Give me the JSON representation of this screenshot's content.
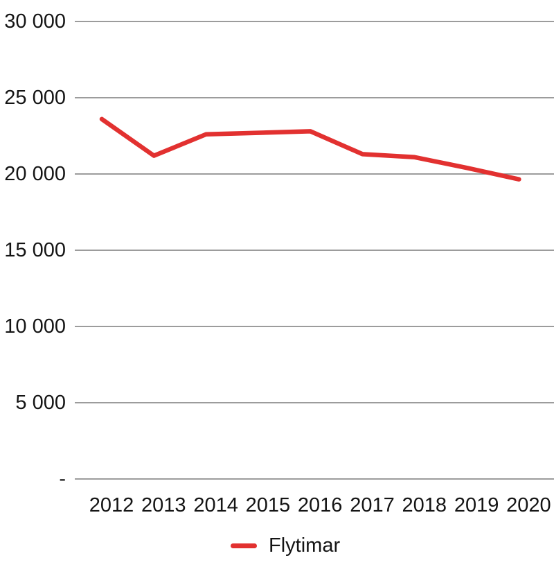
{
  "chart_data": {
    "type": "line",
    "title": "",
    "xlabel": "",
    "ylabel": "",
    "categories": [
      "2012",
      "2013",
      "2014",
      "2015",
      "2016",
      "2017",
      "2018",
      "2019",
      "2020"
    ],
    "series": [
      {
        "name": "Flytimar",
        "color": "#e23130",
        "values": [
          23600,
          21200,
          22600,
          22700,
          22800,
          21300,
          21100,
          20400,
          19650
        ]
      }
    ],
    "ylim": [
      0,
      30000
    ],
    "ytick_step": 5000,
    "ytick_labels_bottom_up": [
      "-",
      "5 000",
      "10 000",
      "15 000",
      "20 000",
      "25 000",
      "30 000"
    ],
    "grid": "horizontal-only",
    "gridline_color": "#7b7b7b",
    "text_color": "#141414",
    "background_color": "#ffffff",
    "legend_position": "bottom-center",
    "line_width": 6.5
  }
}
